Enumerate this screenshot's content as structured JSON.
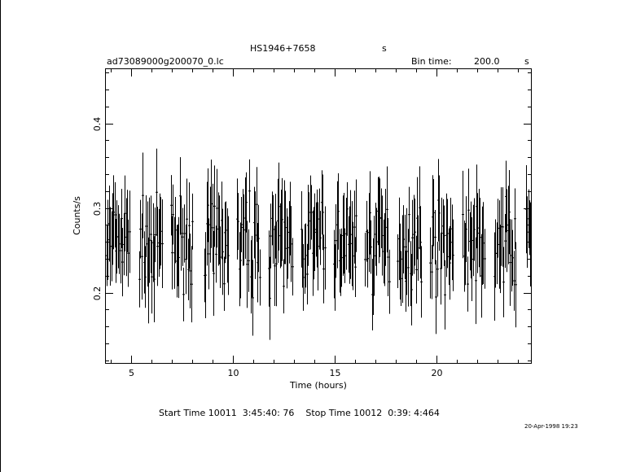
{
  "header": {
    "object": "HS1946+7658",
    "object_unit": "s",
    "filename": "ad73089000g200070_0.lc",
    "bin_time_label": "Bin time:",
    "bin_time_value": "200.0",
    "bin_time_unit": "s"
  },
  "footer": {
    "times": "Start Time 10011  3:45:40: 76    Stop Time 10012  0:39: 4:464",
    "timestamp": "20-Apr-1998 19:23"
  },
  "chart_data": {
    "type": "scatter",
    "title": "HS1946+7658",
    "xlabel": "Time (hours)",
    "ylabel": "Counts/s",
    "xlim": [
      3.76,
      24.65
    ],
    "ylim": [
      0.117,
      0.464
    ],
    "xticks": [
      5,
      10,
      15,
      20
    ],
    "yticks": [
      0.2,
      0.3,
      0.4
    ],
    "grid": false,
    "error_bars": true,
    "segments": [
      [
        3.8,
        4.95
      ],
      [
        5.4,
        6.55
      ],
      [
        6.95,
        8.05
      ],
      [
        8.6,
        9.8
      ],
      [
        10.2,
        11.35
      ],
      [
        11.75,
        12.95
      ],
      [
        13.35,
        14.55
      ],
      [
        14.95,
        16.1
      ],
      [
        16.5,
        17.7
      ],
      [
        18.1,
        19.3
      ],
      [
        19.7,
        20.85
      ],
      [
        21.3,
        22.4
      ],
      [
        22.85,
        23.95
      ],
      [
        24.4,
        24.65
      ]
    ],
    "rate_mean": 0.258,
    "rate_spread": 0.05,
    "error_half_width_mean": 0.042
  }
}
